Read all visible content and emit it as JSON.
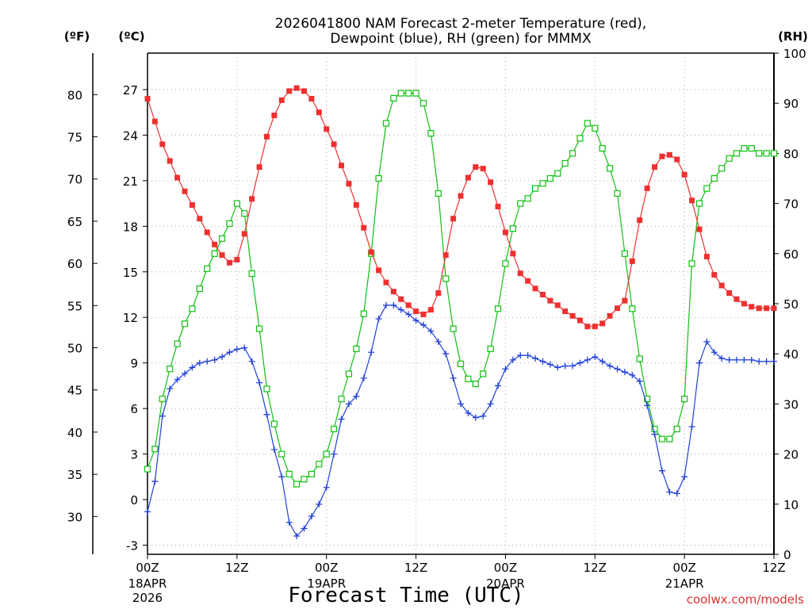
{
  "chart_data": {
    "type": "line",
    "title": "2026041800 NAM Forecast 2-meter Temperature (red),",
    "subtitle": "Dewpoint (blue), RH (green) for MMMX",
    "xlabel": "Forecast Time (UTC)",
    "left_unit_f": "(ºF)",
    "left_unit_c": "(ºC)",
    "right_unit": "(RH)",
    "credit": "coolwx.com/models",
    "x_ticks": [
      {
        "hour": 0,
        "label": "00Z",
        "date": "18APR",
        "year": "2026"
      },
      {
        "hour": 12,
        "label": "12Z",
        "date": "",
        "year": ""
      },
      {
        "hour": 24,
        "label": "00Z",
        "date": "19APR",
        "year": ""
      },
      {
        "hour": 36,
        "label": "12Z",
        "date": "",
        "year": ""
      },
      {
        "hour": 48,
        "label": "00Z",
        "date": "20APR",
        "year": ""
      },
      {
        "hour": 60,
        "label": "12Z",
        "date": "",
        "year": ""
      },
      {
        "hour": 72,
        "label": "00Z",
        "date": "21APR",
        "year": ""
      },
      {
        "hour": 84,
        "label": "12Z",
        "date": "",
        "year": ""
      }
    ],
    "xlim": [
      0,
      84
    ],
    "ylim_c": [
      -3.6,
      29.4
    ],
    "ylim_rh": [
      0,
      100
    ],
    "celsius_ticks": [
      "-3",
      "0",
      "3",
      "6",
      "9",
      "12",
      "15",
      "18",
      "21",
      "24",
      "27"
    ],
    "fahrenheit_ticks": [
      "30",
      "35",
      "40",
      "45",
      "50",
      "55",
      "60",
      "65",
      "70",
      "75",
      "80"
    ],
    "rh_ticks": [
      "0",
      "10",
      "20",
      "30",
      "40",
      "50",
      "60",
      "70",
      "80",
      "90",
      "100"
    ],
    "grid": true,
    "colors": {
      "temperature": "#ee3030",
      "dewpoint": "#2040d8",
      "rh": "#10c010",
      "grid": "#a8a8a8"
    },
    "series": [
      {
        "name": "Temperature",
        "axis": "celsius",
        "values": [
          26.4,
          24.9,
          23.4,
          22.3,
          21.2,
          20.3,
          19.4,
          18.5,
          17.6,
          16.8,
          16.1,
          15.6,
          15.8,
          17.5,
          19.8,
          21.9,
          23.9,
          25.3,
          26.3,
          26.9,
          27.1,
          26.9,
          26.4,
          25.5,
          24.4,
          23.4,
          22.0,
          20.8,
          19.4,
          17.9,
          16.3,
          15.1,
          14.3,
          13.7,
          13.2,
          12.8,
          12.4,
          12.2,
          12.5,
          13.6,
          16.1,
          18.5,
          20.0,
          21.2,
          21.9,
          21.8,
          20.9,
          19.3,
          17.6,
          16.2,
          14.9,
          14.4,
          13.9,
          13.5,
          13.1,
          12.8,
          12.4,
          12.1,
          11.8,
          11.4,
          11.4,
          11.6,
          12.1,
          12.6,
          13.1,
          15.7,
          18.4,
          20.5,
          21.9,
          22.6,
          22.7,
          22.4,
          21.4,
          19.7,
          17.8,
          16.0,
          14.8,
          14.1,
          13.6,
          13.2,
          12.9,
          12.7,
          12.6,
          12.6,
          12.6
        ]
      },
      {
        "name": "Dewpoint",
        "axis": "celsius",
        "values": [
          -0.8,
          1.2,
          5.5,
          7.3,
          7.9,
          8.3,
          8.7,
          9.0,
          9.1,
          9.2,
          9.4,
          9.7,
          9.9,
          10.0,
          9.1,
          7.7,
          5.6,
          3.3,
          1.5,
          -1.5,
          -2.4,
          -1.9,
          -1.1,
          -0.3,
          0.8,
          3.0,
          5.3,
          6.3,
          6.8,
          8.0,
          9.7,
          11.9,
          12.8,
          12.8,
          12.5,
          12.2,
          11.8,
          11.5,
          11.1,
          10.4,
          9.6,
          8.0,
          6.3,
          5.7,
          5.4,
          5.5,
          6.3,
          7.5,
          8.6,
          9.2,
          9.5,
          9.5,
          9.3,
          9.1,
          8.9,
          8.7,
          8.8,
          8.8,
          9.0,
          9.2,
          9.4,
          9.1,
          8.8,
          8.6,
          8.4,
          8.2,
          7.8,
          6.2,
          4.3,
          1.9,
          0.5,
          0.4,
          1.5,
          4.8,
          9.0,
          10.4,
          9.7,
          9.3,
          9.2,
          9.2,
          9.2,
          9.2,
          9.1,
          9.1,
          9.1
        ]
      },
      {
        "name": "RH",
        "axis": "rh",
        "values": [
          17,
          21,
          31,
          37,
          42,
          46,
          49,
          53,
          57,
          60,
          63,
          66,
          70,
          68,
          56,
          45,
          33,
          26,
          20,
          16,
          14,
          15,
          16,
          18,
          20,
          25,
          31,
          36,
          41,
          48,
          60,
          75,
          86,
          91,
          92,
          92,
          92,
          90,
          84,
          72,
          55,
          45,
          38,
          35,
          34,
          36,
          41,
          49,
          58,
          65,
          70,
          71,
          73,
          74,
          75,
          76,
          78,
          80,
          83,
          86,
          85,
          81,
          77,
          72,
          60,
          49,
          39,
          31,
          25,
          23,
          23,
          25,
          31,
          58,
          70,
          73,
          75,
          77,
          79,
          80,
          81,
          81,
          80,
          80,
          80
        ]
      }
    ]
  }
}
